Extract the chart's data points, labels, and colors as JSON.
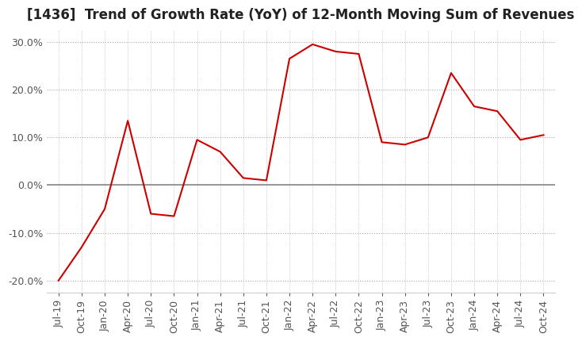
{
  "title": "[1436]  Trend of Growth Rate (YoY) of 12-Month Moving Sum of Revenues",
  "title_fontsize": 12,
  "line_color": "#cc0000",
  "background_color": "#ffffff",
  "ylim": [
    -0.225,
    0.325
  ],
  "yticks": [
    -0.2,
    -0.1,
    0.0,
    0.1,
    0.2,
    0.3
  ],
  "x_labels": [
    "Jul-19",
    "Oct-19",
    "Jan-20",
    "Apr-20",
    "Jul-20",
    "Oct-20",
    "Jan-21",
    "Apr-21",
    "Jul-21",
    "Oct-21",
    "Jan-22",
    "Apr-22",
    "Jul-22",
    "Oct-22",
    "Jan-23",
    "Apr-23",
    "Jul-23",
    "Oct-23",
    "Jan-24",
    "Apr-24",
    "Jul-24",
    "Oct-24"
  ],
  "values": [
    -0.2,
    -0.13,
    -0.05,
    0.135,
    -0.06,
    -0.065,
    0.095,
    0.07,
    0.015,
    0.01,
    0.265,
    0.295,
    0.28,
    0.275,
    0.09,
    0.085,
    0.1,
    0.235,
    0.165,
    0.155,
    0.095,
    0.105
  ],
  "grid_color": "#aaaaaa",
  "zero_line_color": "#888888",
  "tick_color": "#555555",
  "label_fontsize": 9
}
